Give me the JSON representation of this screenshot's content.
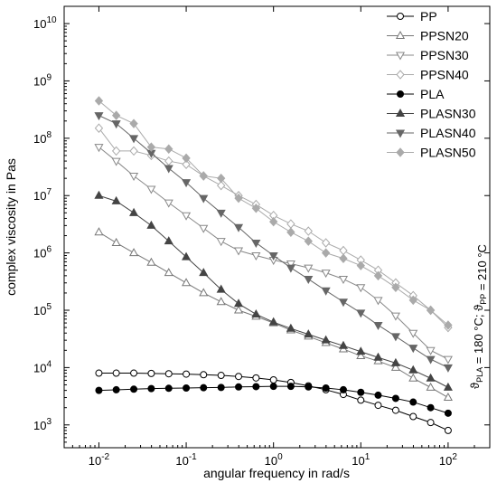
{
  "chart_data": {
    "type": "line",
    "x_scale": "log",
    "y_scale": "log",
    "xlabel": "angular frequency in rad/s",
    "ylabel": "complex viscosity in Pas",
    "xlim": [
      0.004,
      300
    ],
    "ylim": [
      400,
      20000000000
    ],
    "x_ticks": [
      {
        "value": 0.01,
        "base": "10",
        "exp": "-2"
      },
      {
        "value": 0.1,
        "base": "10",
        "exp": "-1"
      },
      {
        "value": 1,
        "base": "10",
        "exp": "0"
      },
      {
        "value": 10,
        "base": "10",
        "exp": "1"
      },
      {
        "value": 100,
        "base": "10",
        "exp": "2"
      }
    ],
    "y_ticks": [
      {
        "value": 1000,
        "base": "10",
        "exp": "3"
      },
      {
        "value": 10000,
        "base": "10",
        "exp": "4"
      },
      {
        "value": 100000,
        "base": "10",
        "exp": "5"
      },
      {
        "value": 1000000,
        "base": "10",
        "exp": "6"
      },
      {
        "value": 10000000,
        "base": "10",
        "exp": "7"
      },
      {
        "value": 100000000,
        "base": "10",
        "exp": "8"
      },
      {
        "value": 1000000000,
        "base": "10",
        "exp": "9"
      },
      {
        "value": 10000000000,
        "base": "10",
        "exp": "10"
      }
    ],
    "legend_position": "top-right",
    "annotation": {
      "parts": [
        {
          "text": "ϑ",
          "sub": "PLA"
        },
        {
          "text": " = 180 °C; ϑ",
          "sub": "PP"
        },
        {
          "text": " = 210 °C",
          "sub": ""
        }
      ]
    },
    "series": [
      {
        "name": "PP",
        "marker": "circle-open",
        "color": "#000000",
        "x": [
          0.01,
          0.0158,
          0.0251,
          0.0398,
          0.0631,
          0.1,
          0.158,
          0.251,
          0.398,
          0.631,
          1,
          1.58,
          2.51,
          3.98,
          6.31,
          10,
          15.8,
          25.1,
          39.8,
          63.1,
          100
        ],
        "y": [
          8000,
          8000,
          8000,
          7900,
          7800,
          7700,
          7500,
          7300,
          7000,
          6600,
          6100,
          5500,
          4800,
          4100,
          3400,
          2700,
          2200,
          1800,
          1400,
          1100,
          800
        ]
      },
      {
        "name": "PPSN20",
        "marker": "triangle-up-open",
        "color": "#777777",
        "x": [
          0.01,
          0.0158,
          0.0251,
          0.0398,
          0.0631,
          0.1,
          0.158,
          0.251,
          0.398,
          0.631,
          1,
          1.58,
          2.51,
          3.98,
          6.31,
          10,
          15.8,
          25.1,
          39.8,
          63.1,
          100
        ],
        "y": [
          2300000,
          1500000,
          1000000,
          680000,
          450000,
          300000,
          200000,
          140000,
          100000,
          78000,
          60000,
          45000,
          35000,
          27000,
          21000,
          16000,
          13000,
          10000,
          6500,
          4500,
          3000
        ]
      },
      {
        "name": "PPSN30",
        "marker": "triangle-down-open",
        "color": "#888888",
        "x": [
          0.01,
          0.0158,
          0.0251,
          0.0398,
          0.0631,
          0.1,
          0.158,
          0.251,
          0.398,
          0.631,
          1,
          1.58,
          2.51,
          3.98,
          6.31,
          10,
          15.8,
          25.1,
          39.8,
          63.1,
          100
        ],
        "y": [
          70000000,
          40000000,
          22000000,
          13000000,
          7500000,
          4500000,
          2700000,
          1600000,
          1100000,
          900000,
          750000,
          650000,
          550000,
          450000,
          350000,
          250000,
          150000,
          80000,
          40000,
          20000,
          14000
        ]
      },
      {
        "name": "PPSN40",
        "marker": "diamond-open",
        "color": "#aaaaaa",
        "x": [
          0.01,
          0.0158,
          0.0251,
          0.0398,
          0.0631,
          0.1,
          0.158,
          0.251,
          0.398,
          0.631,
          1,
          1.58,
          2.51,
          3.98,
          6.31,
          10,
          15.8,
          25.1,
          39.8,
          63.1,
          100
        ],
        "y": [
          150000000,
          60000000,
          60000000,
          50000000,
          40000000,
          35000000,
          22000000,
          15000000,
          10000000,
          7000000,
          4500000,
          3200000,
          2400000,
          1500000,
          1100000,
          750000,
          500000,
          300000,
          180000,
          100000,
          50000
        ]
      },
      {
        "name": "PLA",
        "marker": "circle-filled",
        "color": "#000000",
        "x": [
          0.01,
          0.0158,
          0.0251,
          0.0398,
          0.0631,
          0.1,
          0.158,
          0.251,
          0.398,
          0.631,
          1,
          1.58,
          2.51,
          3.98,
          6.31,
          10,
          15.8,
          25.1,
          39.8,
          63.1,
          100
        ],
        "y": [
          4000,
          4100,
          4200,
          4300,
          4350,
          4400,
          4450,
          4500,
          4600,
          4650,
          4700,
          4700,
          4600,
          4400,
          4100,
          3700,
          3300,
          2900,
          2500,
          2000,
          1600
        ]
      },
      {
        "name": "PLASN30",
        "marker": "triangle-up-filled",
        "color": "#444444",
        "x": [
          0.01,
          0.0158,
          0.0251,
          0.0398,
          0.0631,
          0.1,
          0.158,
          0.251,
          0.398,
          0.631,
          1,
          1.58,
          2.51,
          3.98,
          6.31,
          10,
          15.8,
          25.1,
          39.8,
          63.1,
          100
        ],
        "y": [
          10000000,
          8000000,
          5000000,
          3000000,
          1600000,
          850000,
          450000,
          230000,
          130000,
          85000,
          62000,
          48000,
          38000,
          30000,
          24000,
          19000,
          15000,
          12000,
          9000,
          6500,
          4500
        ]
      },
      {
        "name": "PLASN40",
        "marker": "triangle-down-filled",
        "color": "#666666",
        "x": [
          0.01,
          0.0158,
          0.0251,
          0.0398,
          0.0631,
          0.1,
          0.158,
          0.251,
          0.398,
          0.631,
          1,
          1.58,
          2.51,
          3.98,
          6.31,
          10,
          15.8,
          25.1,
          39.8,
          63.1,
          100
        ],
        "y": [
          250000000,
          180000000,
          100000000,
          55000000,
          30000000,
          17000000,
          9000000,
          5000000,
          2800000,
          1500000,
          900000,
          550000,
          350000,
          220000,
          140000,
          90000,
          55000,
          35000,
          22000,
          14000,
          10000
        ]
      },
      {
        "name": "PLASN50",
        "marker": "diamond-filled",
        "color": "#aaaaaa",
        "x": [
          0.01,
          0.0158,
          0.0251,
          0.0398,
          0.0631,
          0.1,
          0.158,
          0.251,
          0.398,
          0.631,
          1,
          1.58,
          2.51,
          3.98,
          6.31,
          10,
          15.8,
          25.1,
          39.8,
          63.1,
          100
        ],
        "y": [
          450000000,
          250000000,
          180000000,
          70000000,
          65000000,
          45000000,
          22000000,
          20000000,
          9000000,
          6000000,
          3500000,
          2300000,
          1600000,
          1000000,
          800000,
          600000,
          400000,
          250000,
          150000,
          100000,
          55000
        ]
      }
    ]
  }
}
